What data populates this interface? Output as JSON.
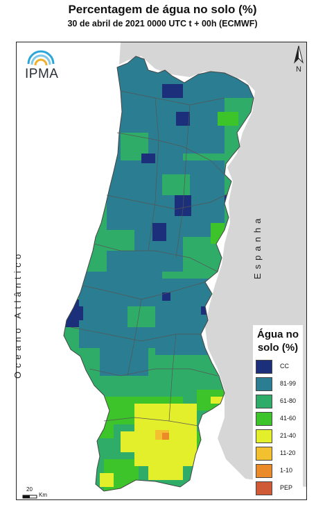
{
  "title": "Percentagem de água no solo (%)",
  "subtitle": "30 de abril de 2021 0000 UTC t + 00h (ECMWF)",
  "labels": {
    "ocean": "Oceano Atlântico",
    "spain": "Espanha",
    "north": "N",
    "logo": "IPMA"
  },
  "legend": {
    "title_line1": "Água no",
    "title_line2": "solo (%)",
    "classes": [
      {
        "label": "CC",
        "color": "#1b2f7a"
      },
      {
        "label": "81-99",
        "color": "#2b7e92"
      },
      {
        "label": "61-80",
        "color": "#2fad68"
      },
      {
        "label": "41-60",
        "color": "#3cc42a"
      },
      {
        "label": "21-40",
        "color": "#e2ef2a"
      },
      {
        "label": "11-20",
        "color": "#f3c030"
      },
      {
        "label": "1-10",
        "color": "#ea8a28"
      },
      {
        "label": "PEP",
        "color": "#d05a36"
      }
    ]
  },
  "scale": {
    "value": "20",
    "unit": "Km"
  },
  "colors": {
    "land_outside": "#d6d6d6",
    "border": "#555555",
    "ocean": "#ffffff"
  }
}
